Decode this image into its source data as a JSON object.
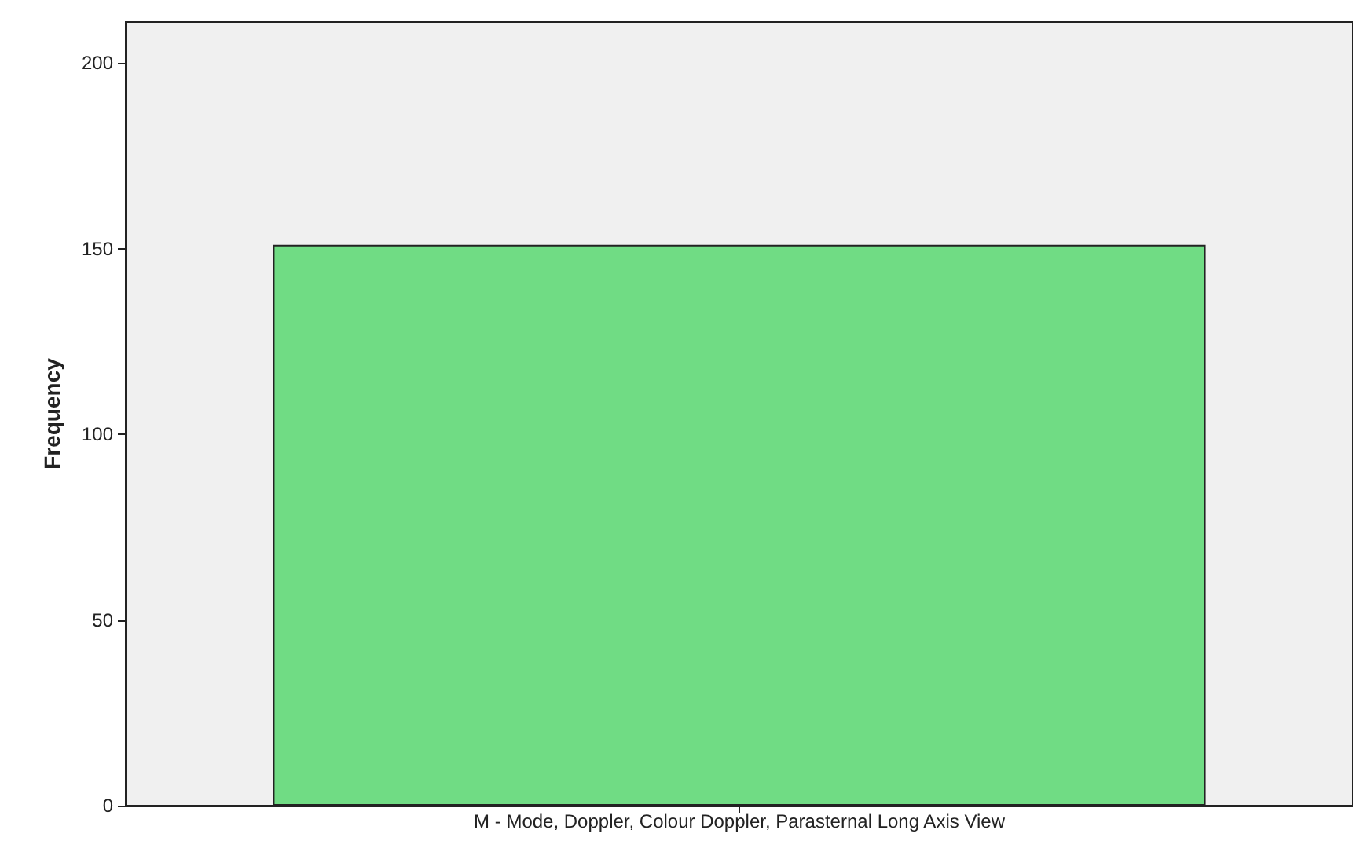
{
  "chart_data": {
    "type": "bar",
    "ylabel": "Frequency",
    "categories": [
      "M - Mode, Doppler, Colour Doppler, Parasternal Long Axis View"
    ],
    "values": [
      151
    ],
    "color": "#70dc84",
    "ylim": [
      0,
      211
    ],
    "yticks": [
      0,
      50,
      100,
      150,
      200
    ],
    "grid": false
  }
}
